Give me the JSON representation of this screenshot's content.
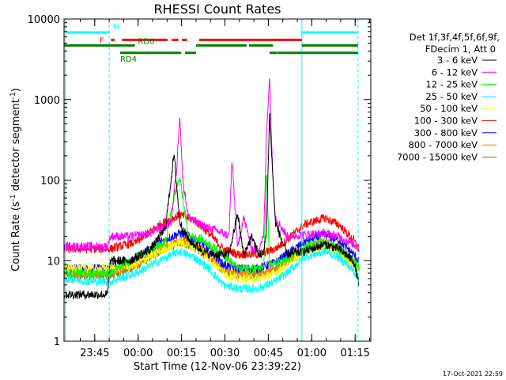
{
  "chart_data": {
    "type": "line",
    "title": "RHESSI Count Rates",
    "xlabel": "Start Time (12-Nov-06 23:39:22)",
    "ylabel_main": "Count Rate (s",
    "ylabel_sup": "-1",
    "ylabel_tail": " detector segment",
    "ylabel_sup2": "-1",
    "ylabel_close": ")",
    "y_scale": "log",
    "ylim": [
      1,
      10000
    ],
    "y_ticks": [
      {
        "value": 1,
        "label": "1"
      },
      {
        "value": 10,
        "label": "10"
      },
      {
        "value": 100,
        "label": "100"
      },
      {
        "value": 1000,
        "label": "1000"
      },
      {
        "value": 10000,
        "label": "10000"
      }
    ],
    "x_unit": "minutes after 23:39:22",
    "xlim": [
      -5,
      101
    ],
    "x_ticks": [
      {
        "value": 5.6,
        "label": "23:45"
      },
      {
        "value": 20.6,
        "label": "00:00"
      },
      {
        "value": 35.6,
        "label": "00:15"
      },
      {
        "value": 50.6,
        "label": "00:30"
      },
      {
        "value": 65.6,
        "label": "00:45"
      },
      {
        "value": 80.6,
        "label": "01:00"
      },
      {
        "value": 95.6,
        "label": "01:15"
      }
    ],
    "grid": false,
    "legend": {
      "placement": "right",
      "header1": "Det 1f,3f,4f,5f,6f,9f,",
      "header2": "FDecim 1, Att 0"
    },
    "series": [
      {
        "name": "3 - 6 keV",
        "color": "#000000",
        "x": [
          -5,
          10,
          11,
          18,
          25,
          30,
          33,
          35,
          38,
          42,
          45,
          50,
          52,
          55,
          57,
          60,
          62,
          64,
          65,
          66,
          68,
          72,
          78,
          85,
          90,
          95,
          97
        ],
        "y": [
          3.8,
          3.8,
          10,
          10,
          14,
          25,
          210,
          30,
          18,
          14,
          12,
          12,
          12,
          38,
          12,
          20,
          12,
          12,
          25,
          680,
          30,
          12,
          13,
          16,
          14,
          10,
          5
        ]
      },
      {
        "name": "6 - 12 keV",
        "color": "#ff00ff",
        "x": [
          -5,
          10,
          11,
          18,
          25,
          32,
          34,
          35,
          36,
          38,
          42,
          50,
          52,
          53,
          55,
          57,
          60,
          62,
          64,
          65,
          66,
          67,
          68,
          72,
          78,
          85,
          90,
          95,
          97
        ],
        "y": [
          15,
          15,
          20,
          20,
          22,
          30,
          150,
          700,
          100,
          35,
          28,
          22,
          20,
          180,
          14,
          35,
          14,
          14,
          20,
          400,
          1950,
          150,
          35,
          20,
          21,
          22,
          20,
          16,
          14
        ]
      },
      {
        "name": "12 - 25 keV",
        "color": "#00ff00",
        "x": [
          -5,
          11,
          20,
          30,
          33,
          35,
          38,
          42,
          50,
          55,
          62,
          64,
          65,
          66,
          67,
          72,
          80,
          85,
          90,
          95,
          97
        ],
        "y": [
          7,
          7,
          11,
          17,
          60,
          110,
          20,
          19,
          12,
          8,
          8,
          9,
          130,
          9,
          9,
          10,
          16,
          17,
          14,
          10,
          8
        ]
      },
      {
        "name": "25 - 50 keV",
        "color": "#00ffff",
        "x": [
          -5,
          5,
          11,
          20,
          28,
          35,
          40,
          45,
          50,
          55,
          62,
          68,
          72,
          78,
          85,
          90,
          95,
          97
        ],
        "y": [
          6,
          5.5,
          5.5,
          7,
          10,
          13,
          11,
          8,
          5,
          4.5,
          4.5,
          5.5,
          7,
          11,
          13,
          11,
          7.5,
          6
        ]
      },
      {
        "name": "50 - 100 keV",
        "color": "#ffff00",
        "x": [
          -5,
          11,
          20,
          28,
          35,
          40,
          45,
          50,
          55,
          62,
          68,
          72,
          78,
          85,
          90,
          95,
          97
        ],
        "y": [
          8,
          8,
          9,
          13,
          17,
          15,
          11,
          7,
          6,
          6,
          7,
          9,
          13,
          15,
          13,
          9,
          8
        ]
      },
      {
        "name": "100 - 300 keV",
        "color": "#ff0000",
        "x": [
          -5,
          11,
          20,
          28,
          35,
          40,
          45,
          50,
          55,
          62,
          68,
          72,
          78,
          85,
          90,
          95,
          97
        ],
        "y": [
          14,
          14,
          17,
          28,
          37,
          32,
          22,
          14,
          12,
          12,
          14,
          18,
          28,
          34,
          28,
          18,
          14
        ]
      },
      {
        "name": "300 - 800 keV",
        "color": "#0000ff",
        "x": [
          -5,
          11,
          20,
          28,
          35,
          40,
          45,
          50,
          55,
          62,
          68,
          72,
          78,
          85,
          90,
          95,
          97
        ],
        "y": [
          8,
          8,
          11,
          17,
          22,
          19,
          14,
          9,
          8,
          8,
          9.5,
          12,
          17,
          21,
          18,
          12,
          10
        ]
      },
      {
        "name": "800 - 7000 keV",
        "color": "#ff8000",
        "x": [
          -5,
          11,
          20,
          28,
          35,
          40,
          45,
          50,
          55,
          62,
          68,
          72,
          78,
          85,
          90,
          95,
          97
        ],
        "y": [
          7,
          7,
          9,
          14,
          18,
          16,
          12,
          8,
          7,
          7,
          8,
          10,
          14,
          17,
          15,
          10,
          8
        ]
      },
      {
        "name": "7000 - 15000 keV",
        "color": "#808000",
        "x": [
          -5,
          11,
          20,
          28,
          35,
          40,
          45,
          50,
          55,
          62,
          68,
          72,
          78,
          85,
          90,
          95,
          97
        ],
        "y": [
          6.5,
          6.5,
          8.5,
          13,
          17,
          15,
          11,
          7.5,
          6.5,
          6.5,
          7.5,
          9.5,
          13,
          16,
          14,
          9.5,
          7.5
        ]
      }
    ],
    "vertical_lines": [
      {
        "x": -4.5,
        "color": "#00ffff",
        "style": "solid"
      },
      {
        "x": 10.6,
        "color": "#00ffff",
        "style": "dashed"
      },
      {
        "x": 77.2,
        "color": "#00ffff",
        "style": "solid"
      },
      {
        "x": 96.6,
        "color": "#00ffff",
        "style": "dashed"
      }
    ],
    "flag_bars": [
      {
        "label": "N",
        "color": "#00ffff",
        "y": 6800,
        "segments": [
          [
            -4.5,
            10.6
          ],
          [
            77.2,
            96.6
          ]
        ]
      },
      {
        "label": "F",
        "color": "#ff0000",
        "y": 5500,
        "segments": [
          [
            11.2,
            12.5
          ],
          [
            15,
            30.8
          ],
          [
            32.2,
            34.5
          ],
          [
            35.7,
            37.5
          ],
          [
            41.7,
            77.2
          ]
        ]
      },
      {
        "label": "RD0",
        "color": "#008000",
        "y": 4700,
        "segments": [
          [
            -5,
            19.5
          ],
          [
            40.6,
            58.1
          ],
          [
            58.9,
            67.2
          ],
          [
            77.2,
            96.6
          ]
        ]
      },
      {
        "label": "RD4",
        "color": "#008000",
        "y": 3800,
        "segments": [
          [
            14.4,
            25.3
          ],
          [
            25.3,
            35.5
          ],
          [
            36.8,
            40.6
          ],
          [
            66,
            68.5
          ],
          [
            68.6,
            96.6
          ]
        ]
      }
    ]
  },
  "footer": {
    "timestamp": "17-Oct-2021 22:59"
  }
}
